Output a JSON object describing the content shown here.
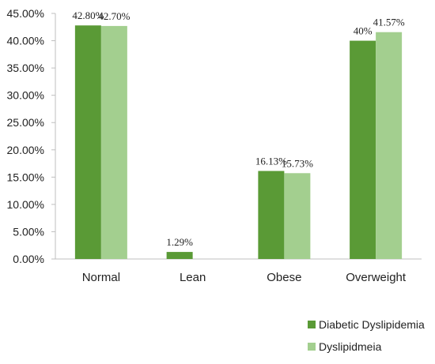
{
  "chart_data": {
    "type": "bar",
    "categories": [
      "Normal",
      "Lean",
      "Obese",
      "Overweight"
    ],
    "series": [
      {
        "name": "Diabetic Dyslipidemia",
        "values": [
          42.8,
          1.29,
          16.13,
          40
        ],
        "labels": [
          "42.80%",
          "1.29%",
          "16.13%",
          "40%"
        ],
        "color": "#5a9a36"
      },
      {
        "name": "Dyslipidmeia",
        "values": [
          42.7,
          0,
          15.73,
          41.57
        ],
        "labels": [
          "42.70%",
          "",
          "15.73%",
          "41.57%"
        ],
        "color": "#a3cf8f"
      }
    ],
    "yticks": [
      "0.00%",
      "5.00%",
      "10.00%",
      "15.00%",
      "20.00%",
      "25.00%",
      "30.00%",
      "35.00%",
      "40.00%",
      "45.00%"
    ],
    "ylim": [
      0,
      45
    ],
    "grid": false,
    "legend": "bottom-right",
    "title": "",
    "xlabel": "",
    "ylabel": ""
  }
}
